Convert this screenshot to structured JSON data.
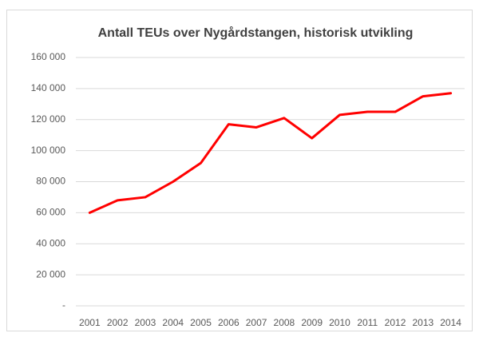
{
  "chart_data": {
    "type": "line",
    "title": "Antall TEUs over Nygårdstangen, historisk utvikling",
    "categories": [
      "2001",
      "2002",
      "2003",
      "2004",
      "2005",
      "2006",
      "2007",
      "2008",
      "2009",
      "2010",
      "2011",
      "2012",
      "2013",
      "2014"
    ],
    "series": [
      {
        "name": "TEUs",
        "color": "#ff0000",
        "values": [
          60000,
          68000,
          70000,
          80000,
          92000,
          117000,
          115000,
          121000,
          108000,
          123000,
          125000,
          125000,
          135000,
          137000
        ]
      }
    ],
    "ylim": [
      0,
      160000
    ],
    "yticks": [
      {
        "value": 0,
        "label": "-"
      },
      {
        "value": 20000,
        "label": "20 000"
      },
      {
        "value": 40000,
        "label": "40 000"
      },
      {
        "value": 60000,
        "label": "60 000"
      },
      {
        "value": 80000,
        "label": "80 000"
      },
      {
        "value": 100000,
        "label": "100 000"
      },
      {
        "value": 120000,
        "label": "120 000"
      },
      {
        "value": 140000,
        "label": "140 000"
      },
      {
        "value": 160000,
        "label": "160 000"
      }
    ],
    "grid": true
  }
}
